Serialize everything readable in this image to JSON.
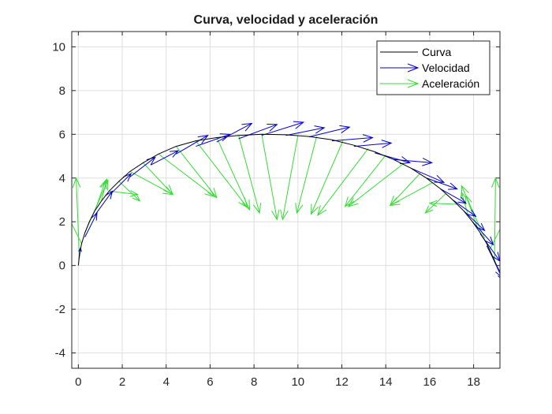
{
  "chart_data": {
    "type": "line",
    "title": "Curva, velocidad y aceleración",
    "xlabel": "",
    "ylabel": "",
    "xlim": [
      -0.3,
      19.2
    ],
    "ylim": [
      -4.7,
      10.7
    ],
    "xticks": [
      0,
      2,
      4,
      6,
      8,
      10,
      12,
      14,
      16,
      18
    ],
    "yticks": [
      -4,
      -2,
      0,
      2,
      4,
      6,
      8,
      10
    ],
    "grid": true,
    "legend_position": "top-right",
    "colors": {
      "curva": "#000000",
      "velocidad": "#0000cc",
      "aceleracion": "#33dd33"
    },
    "legend": [
      "Curva",
      "Velocidad",
      "Aceleración"
    ],
    "curve": {
      "x": [
        0,
        0.05,
        0.15,
        0.3,
        0.5,
        0.75,
        1.05,
        1.4,
        1.85,
        2.35,
        2.95,
        3.65,
        4.45,
        5.35,
        6.3,
        7.3,
        8.35,
        9.45,
        10.5,
        11.55,
        12.55,
        13.5,
        14.35,
        15.15,
        15.85,
        16.5,
        17.05,
        17.55,
        17.95,
        18.3,
        18.6,
        18.85,
        19.05
      ],
      "y": [
        0,
        0.5,
        1.0,
        1.5,
        2.0,
        2.5,
        2.95,
        3.4,
        3.85,
        4.3,
        4.7,
        5.1,
        5.45,
        5.7,
        5.85,
        5.95,
        6.0,
        5.98,
        5.9,
        5.75,
        5.5,
        5.2,
        4.85,
        4.45,
        4.0,
        3.5,
        3.0,
        2.5,
        2.0,
        1.5,
        1.0,
        0.45,
        0.0
      ]
    },
    "velocity": [
      {
        "x": 0.05,
        "y": 0.4,
        "u": 0.05,
        "v": 0.4
      },
      {
        "x": 0.3,
        "y": 1.3,
        "u": 0.55,
        "v": 1.1
      },
      {
        "x": 0.75,
        "y": 2.3,
        "u": 0.8,
        "v": 1.1
      },
      {
        "x": 1.4,
        "y": 3.2,
        "u": 1.0,
        "v": 1.0
      },
      {
        "x": 2.35,
        "y": 4.05,
        "u": 1.15,
        "v": 0.9
      },
      {
        "x": 3.3,
        "y": 4.6,
        "u": 1.25,
        "v": 0.65
      },
      {
        "x": 4.45,
        "y": 5.1,
        "u": 1.45,
        "v": 0.85
      },
      {
        "x": 5.35,
        "y": 5.45,
        "u": 1.55,
        "v": 0.55
      },
      {
        "x": 6.3,
        "y": 5.65,
        "u": 1.6,
        "v": 0.85
      },
      {
        "x": 7.3,
        "y": 5.8,
        "u": 1.75,
        "v": 0.65
      },
      {
        "x": 8.35,
        "y": 5.95,
        "u": 1.9,
        "v": 0.6
      },
      {
        "x": 9.45,
        "y": 5.95,
        "u": 1.75,
        "v": 0.35
      },
      {
        "x": 10.5,
        "y": 5.88,
        "u": 1.85,
        "v": 0.45
      },
      {
        "x": 11.55,
        "y": 5.7,
        "u": 1.85,
        "v": 0.15
      },
      {
        "x": 12.55,
        "y": 5.45,
        "u": 1.7,
        "v": 0.15
      },
      {
        "x": 13.5,
        "y": 5.15,
        "u": 1.6,
        "v": -0.45
      },
      {
        "x": 14.35,
        "y": 4.85,
        "u": 1.75,
        "v": -0.15
      },
      {
        "x": 15.15,
        "y": 4.45,
        "u": 1.5,
        "v": -0.65
      },
      {
        "x": 15.85,
        "y": 4.0,
        "u": 1.4,
        "v": -0.5
      },
      {
        "x": 16.5,
        "y": 3.5,
        "u": 1.15,
        "v": -0.65
      },
      {
        "x": 17.05,
        "y": 3.0,
        "u": 1.05,
        "v": -0.75
      },
      {
        "x": 17.55,
        "y": 2.5,
        "u": 0.95,
        "v": -0.9
      },
      {
        "x": 17.95,
        "y": 2.0,
        "u": 0.95,
        "v": -1.05
      },
      {
        "x": 18.3,
        "y": 1.45,
        "u": 0.9,
        "v": -1.25
      },
      {
        "x": 18.6,
        "y": 0.9,
        "u": 0.75,
        "v": -1.5
      },
      {
        "x": 18.85,
        "y": 0.4,
        "u": 0.5,
        "v": -1.1
      }
    ],
    "acceleration": [
      {
        "x": 0.05,
        "y": 0.3,
        "u": -0.15,
        "v": 3.7
      },
      {
        "x": 0.15,
        "y": 1.0,
        "u": -0.95,
        "v": 1.9
      },
      {
        "x": 0.3,
        "y": 1.5,
        "u": 1.05,
        "v": 2.4
      },
      {
        "x": 0.75,
        "y": 2.5,
        "u": 0.5,
        "v": 1.4
      },
      {
        "x": 1.05,
        "y": 2.95,
        "u": 0.25,
        "v": 1.0
      },
      {
        "x": 1.4,
        "y": 3.4,
        "u": 1.3,
        "v": -0.15
      },
      {
        "x": 1.85,
        "y": 3.85,
        "u": 0.95,
        "v": -0.9
      },
      {
        "x": 2.35,
        "y": 4.3,
        "u": 1.95,
        "v": -1.05
      },
      {
        "x": 2.95,
        "y": 4.7,
        "u": 1.35,
        "v": -1.45
      },
      {
        "x": 3.65,
        "y": 5.1,
        "u": 2.55,
        "v": -1.95
      },
      {
        "x": 4.45,
        "y": 5.45,
        "u": 1.85,
        "v": -2.35
      },
      {
        "x": 5.35,
        "y": 5.7,
        "u": 2.35,
        "v": -3.05
      },
      {
        "x": 6.3,
        "y": 5.85,
        "u": 1.5,
        "v": -3.3
      },
      {
        "x": 7.3,
        "y": 5.95,
        "u": 0.95,
        "v": -3.55
      },
      {
        "x": 8.35,
        "y": 6.0,
        "u": 0.7,
        "v": -3.9
      },
      {
        "x": 10.0,
        "y": 5.95,
        "u": -0.7,
        "v": -3.85
      },
      {
        "x": 10.85,
        "y": 5.9,
        "u": -0.9,
        "v": -3.5
      },
      {
        "x": 12.05,
        "y": 5.7,
        "u": -1.45,
        "v": -3.35
      },
      {
        "x": 13.2,
        "y": 5.35,
        "u": -2.3,
        "v": -3.05
      },
      {
        "x": 14.0,
        "y": 5.05,
        "u": -1.85,
        "v": -2.35
      },
      {
        "x": 14.8,
        "y": 4.65,
        "u": -2.5,
        "v": -1.95
      },
      {
        "x": 15.55,
        "y": 4.2,
        "u": -1.35,
        "v": -1.45
      },
      {
        "x": 16.15,
        "y": 3.8,
        "u": -1.95,
        "v": -1.05
      },
      {
        "x": 16.75,
        "y": 3.3,
        "u": -0.95,
        "v": -0.9
      },
      {
        "x": 17.25,
        "y": 2.8,
        "u": -1.25,
        "v": 0.05
      },
      {
        "x": 17.75,
        "y": 2.3,
        "u": -0.3,
        "v": 1.05
      },
      {
        "x": 18.15,
        "y": 1.8,
        "u": -0.5,
        "v": 1.4
      },
      {
        "x": 18.5,
        "y": 1.25,
        "u": -1.05,
        "v": 2.4
      },
      {
        "x": 18.75,
        "y": 0.75,
        "u": 0.95,
        "v": 1.9
      },
      {
        "x": 18.95,
        "y": 0.2,
        "u": 0.05,
        "v": 3.8
      }
    ]
  }
}
